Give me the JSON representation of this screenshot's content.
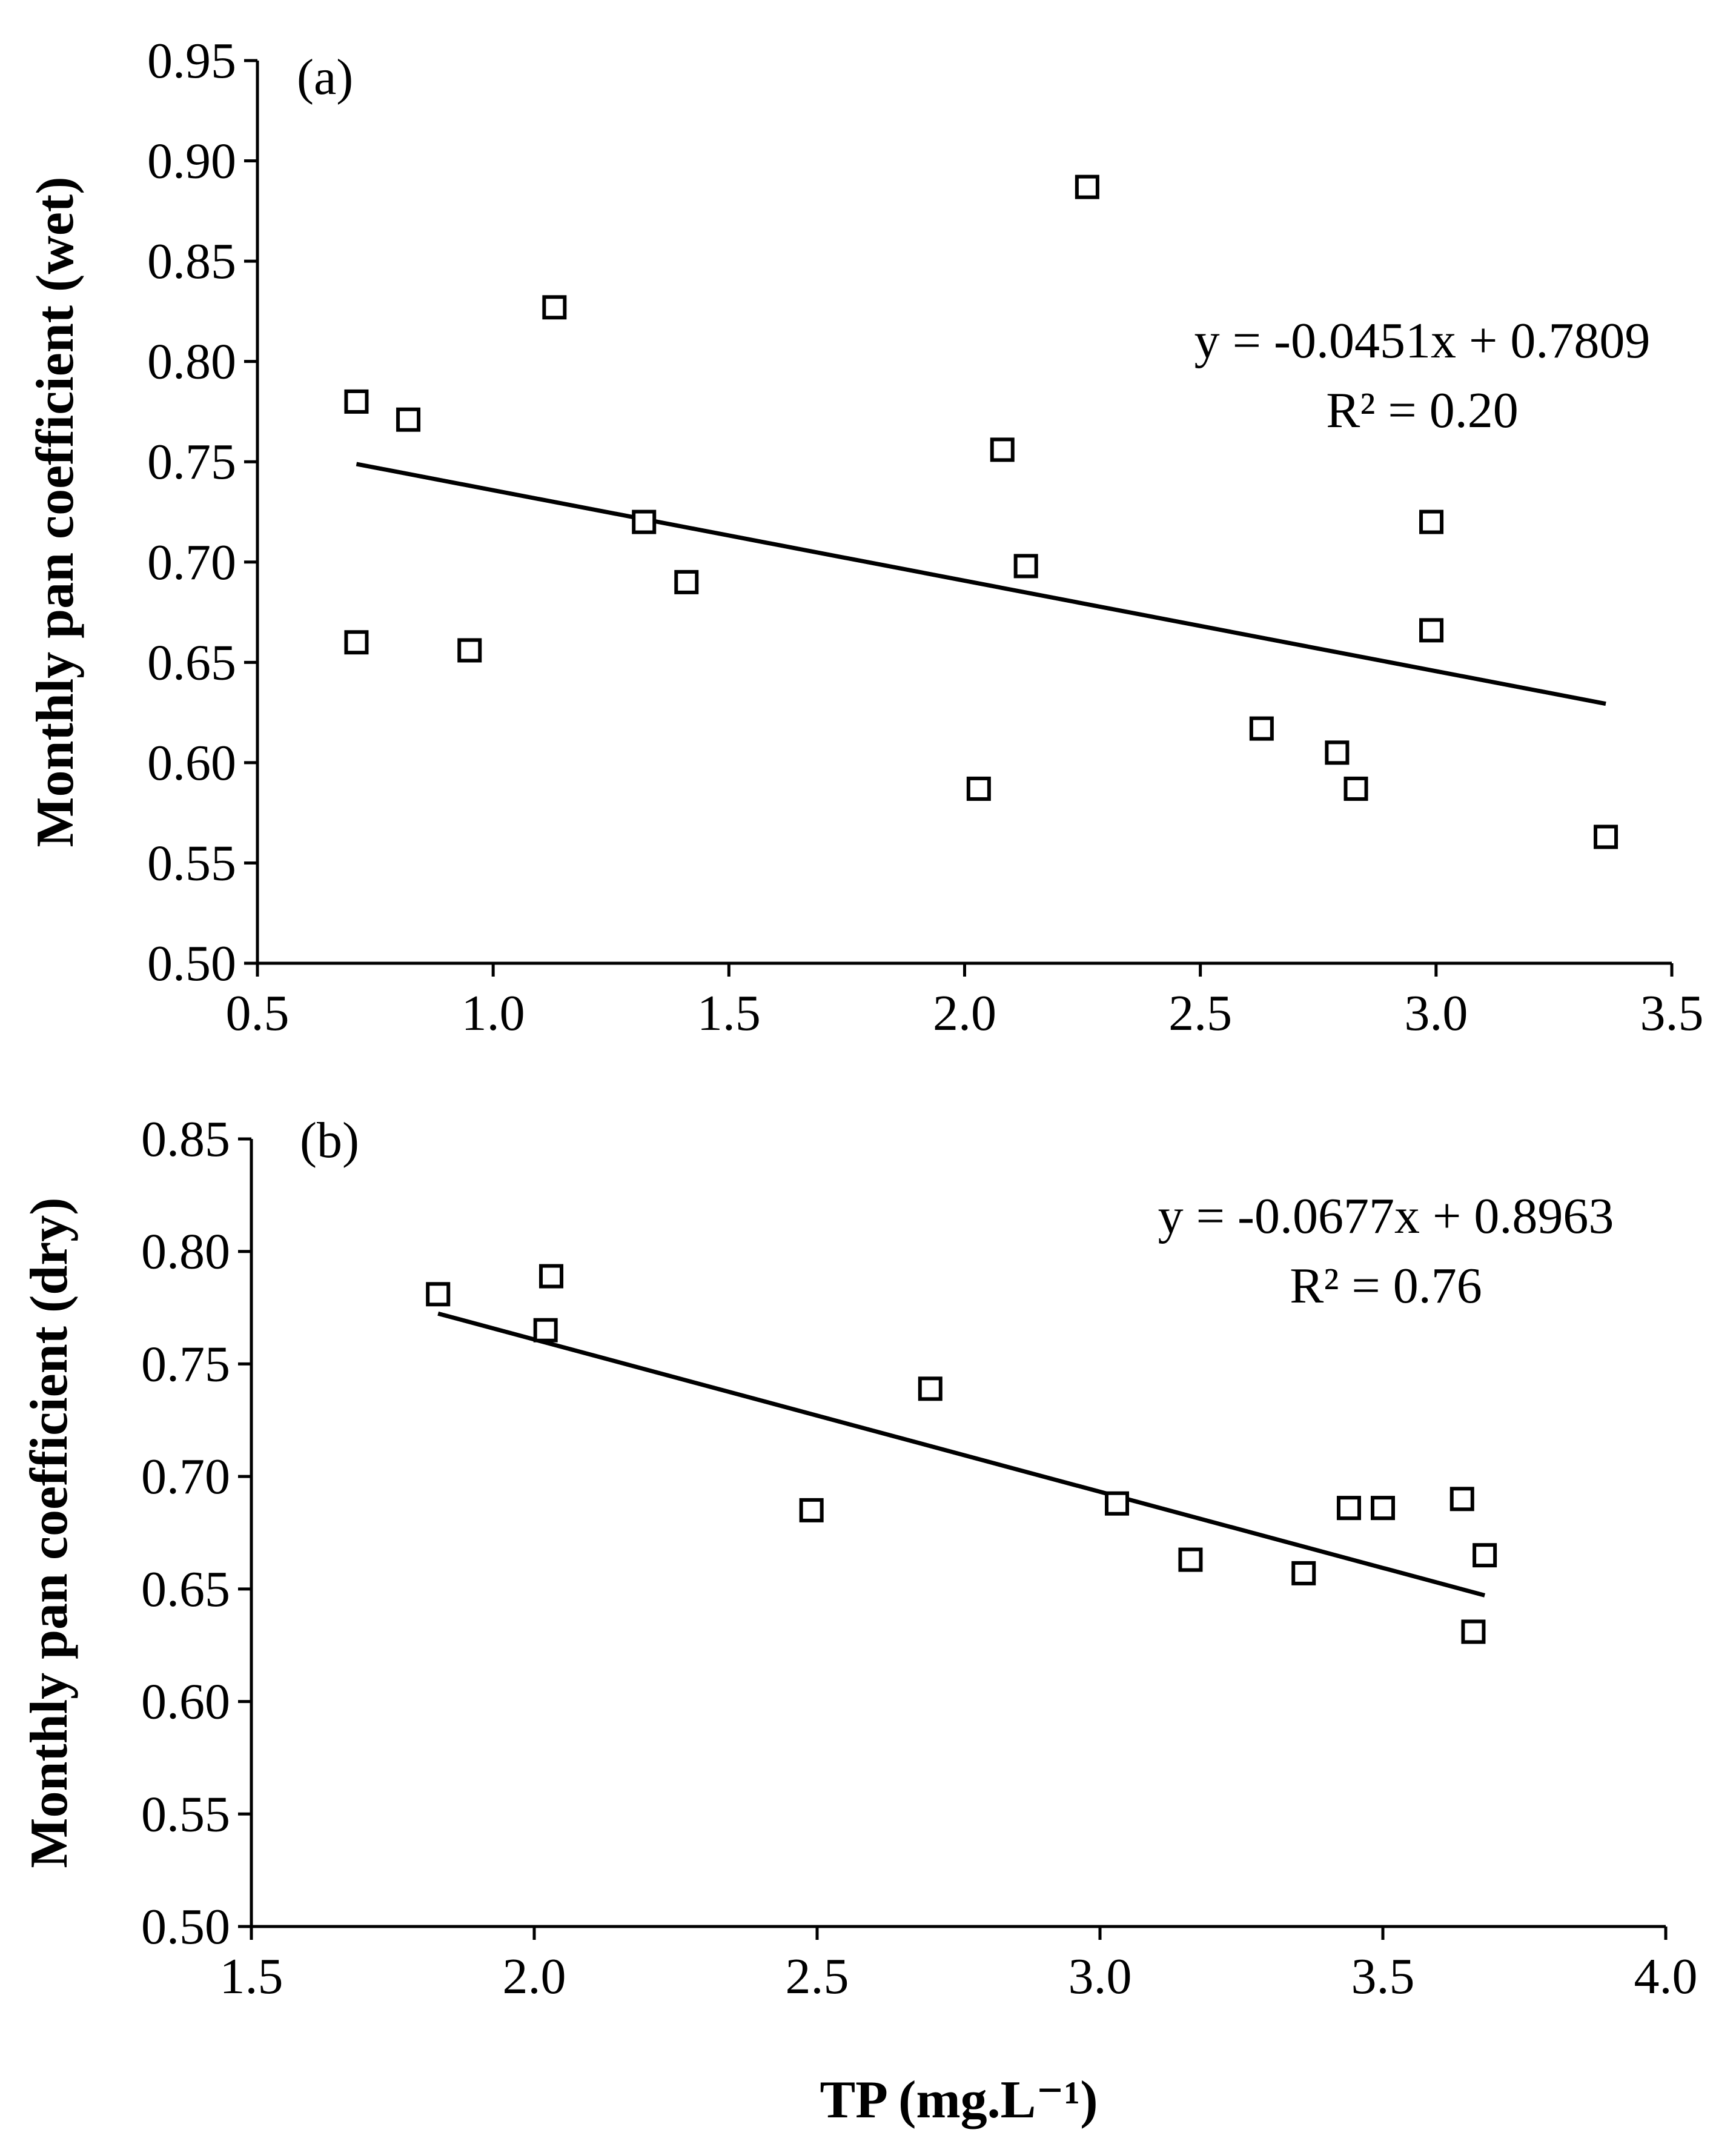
{
  "chart_data": [
    {
      "type": "scatter",
      "panel_label": "(a)",
      "xlabel": "",
      "ylabel": "Monthly pan coefficient (wet)",
      "xlim": [
        0.5,
        3.5
      ],
      "ylim": [
        0.5,
        0.95
      ],
      "xticks": [
        "0.5",
        "1.0",
        "1.5",
        "2.0",
        "2.5",
        "3.0",
        "3.5"
      ],
      "yticks": [
        "0.50",
        "0.55",
        "0.60",
        "0.65",
        "0.70",
        "0.75",
        "0.80",
        "0.85",
        "0.90",
        "0.95"
      ],
      "marker": "open-square",
      "points": [
        [
          0.71,
          0.78
        ],
        [
          0.71,
          0.66
        ],
        [
          0.82,
          0.771
        ],
        [
          0.95,
          0.656
        ],
        [
          1.13,
          0.827
        ],
        [
          1.32,
          0.72
        ],
        [
          1.41,
          0.69
        ],
        [
          2.03,
          0.587
        ],
        [
          2.08,
          0.756
        ],
        [
          2.13,
          0.698
        ],
        [
          2.26,
          0.887
        ],
        [
          2.63,
          0.617
        ],
        [
          2.79,
          0.605
        ],
        [
          2.83,
          0.587
        ],
        [
          2.99,
          0.72
        ],
        [
          2.99,
          0.666
        ],
        [
          3.36,
          0.563
        ]
      ],
      "trendline": {
        "slope": -0.0451,
        "intercept": 0.7809,
        "x_from": 0.71,
        "x_to": 3.36
      },
      "equation": "y = -0.0451x + 0.7809",
      "r2": "R² = 0.20"
    },
    {
      "type": "scatter",
      "panel_label": "(b)",
      "xlabel": "TP (mg.L⁻¹)",
      "ylabel": "Monthly pan coefficient (dry)",
      "xlim": [
        1.5,
        4.0
      ],
      "ylim": [
        0.5,
        0.85
      ],
      "xticks": [
        "1.5",
        "2.0",
        "2.5",
        "3.0",
        "3.5",
        "4.0"
      ],
      "yticks": [
        "0.50",
        "0.55",
        "0.60",
        "0.65",
        "0.70",
        "0.75",
        "0.80",
        "0.85"
      ],
      "marker": "open-square",
      "points": [
        [
          1.83,
          0.781
        ],
        [
          2.02,
          0.765
        ],
        [
          2.03,
          0.789
        ],
        [
          2.49,
          0.685
        ],
        [
          2.7,
          0.739
        ],
        [
          3.03,
          0.688
        ],
        [
          3.16,
          0.663
        ],
        [
          3.36,
          0.657
        ],
        [
          3.44,
          0.686
        ],
        [
          3.5,
          0.686
        ],
        [
          3.64,
          0.69
        ],
        [
          3.66,
          0.631
        ],
        [
          3.68,
          0.665
        ]
      ],
      "trendline": {
        "slope": -0.0677,
        "intercept": 0.8963,
        "x_from": 1.83,
        "x_to": 3.68
      },
      "equation": "y = -0.0677x + 0.8963",
      "r2": "R² = 0.76"
    }
  ]
}
